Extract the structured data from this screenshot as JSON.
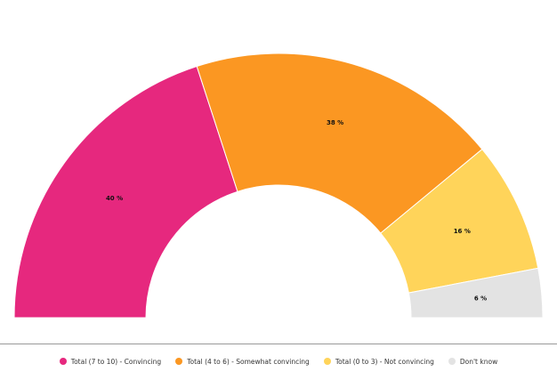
{
  "chart_data": {
    "type": "pie",
    "subtype": "semi-donut",
    "categories": [
      "Total (7 to 10) - Convincing",
      "Total (4 to 6) - Somewhat convincing",
      "Total (0 to 3) - Not convincing",
      "Don't know"
    ],
    "values": [
      40,
      38,
      16,
      6
    ],
    "value_labels": [
      "40 %",
      "38 %",
      "16 %",
      "6 %"
    ],
    "colors": [
      "#e6287e",
      "#fb9722",
      "#ffd45a",
      "#e3e3e3"
    ],
    "legend_position": "bottom-center"
  }
}
